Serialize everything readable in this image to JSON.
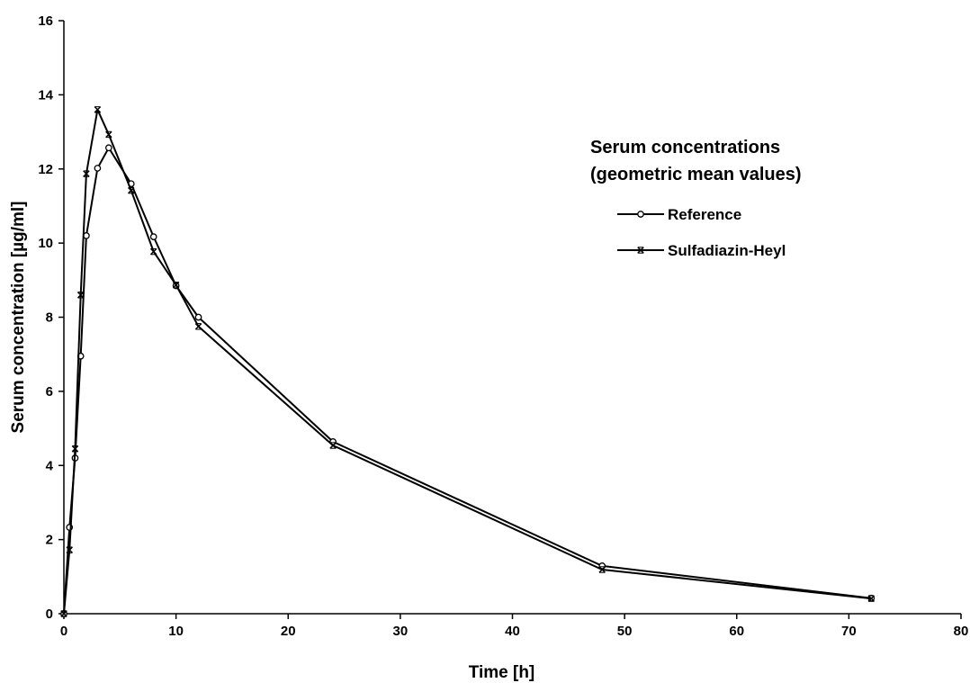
{
  "chart_data": {
    "type": "line",
    "xlabel": "Time [h]",
    "ylabel": "Serum concentration [µg/ml]",
    "xlim": [
      0,
      80
    ],
    "ylim": [
      0,
      16
    ],
    "xticks": [
      0,
      10,
      20,
      30,
      40,
      50,
      60,
      70,
      80
    ],
    "yticks": [
      0,
      2,
      4,
      6,
      8,
      10,
      12,
      14,
      16
    ],
    "grid": false,
    "legend": {
      "placement": "right",
      "title_lines": [
        "Serum concentrations",
        "(geometric mean  values)"
      ]
    },
    "series": [
      {
        "name": "Reference",
        "marker": "circle",
        "color": "#000000",
        "x": [
          0,
          0.5,
          1,
          1.5,
          2,
          3,
          4,
          6,
          8,
          10,
          12,
          24,
          48,
          72
        ],
        "y": [
          0,
          2.33,
          4.2,
          6.95,
          10.2,
          12.02,
          12.57,
          11.6,
          10.17,
          8.85,
          8.0,
          4.64,
          1.29,
          0.42
        ]
      },
      {
        "name": "Sulfadiazin-Heyl",
        "marker": "x",
        "color": "#000000",
        "x": [
          0,
          0.5,
          1,
          1.5,
          2,
          3,
          4,
          6,
          8,
          10,
          12,
          24,
          48,
          72
        ],
        "y": [
          0,
          1.72,
          4.45,
          8.6,
          11.87,
          13.6,
          12.93,
          11.42,
          9.77,
          8.87,
          7.75,
          4.54,
          1.19,
          0.41
        ]
      }
    ]
  }
}
